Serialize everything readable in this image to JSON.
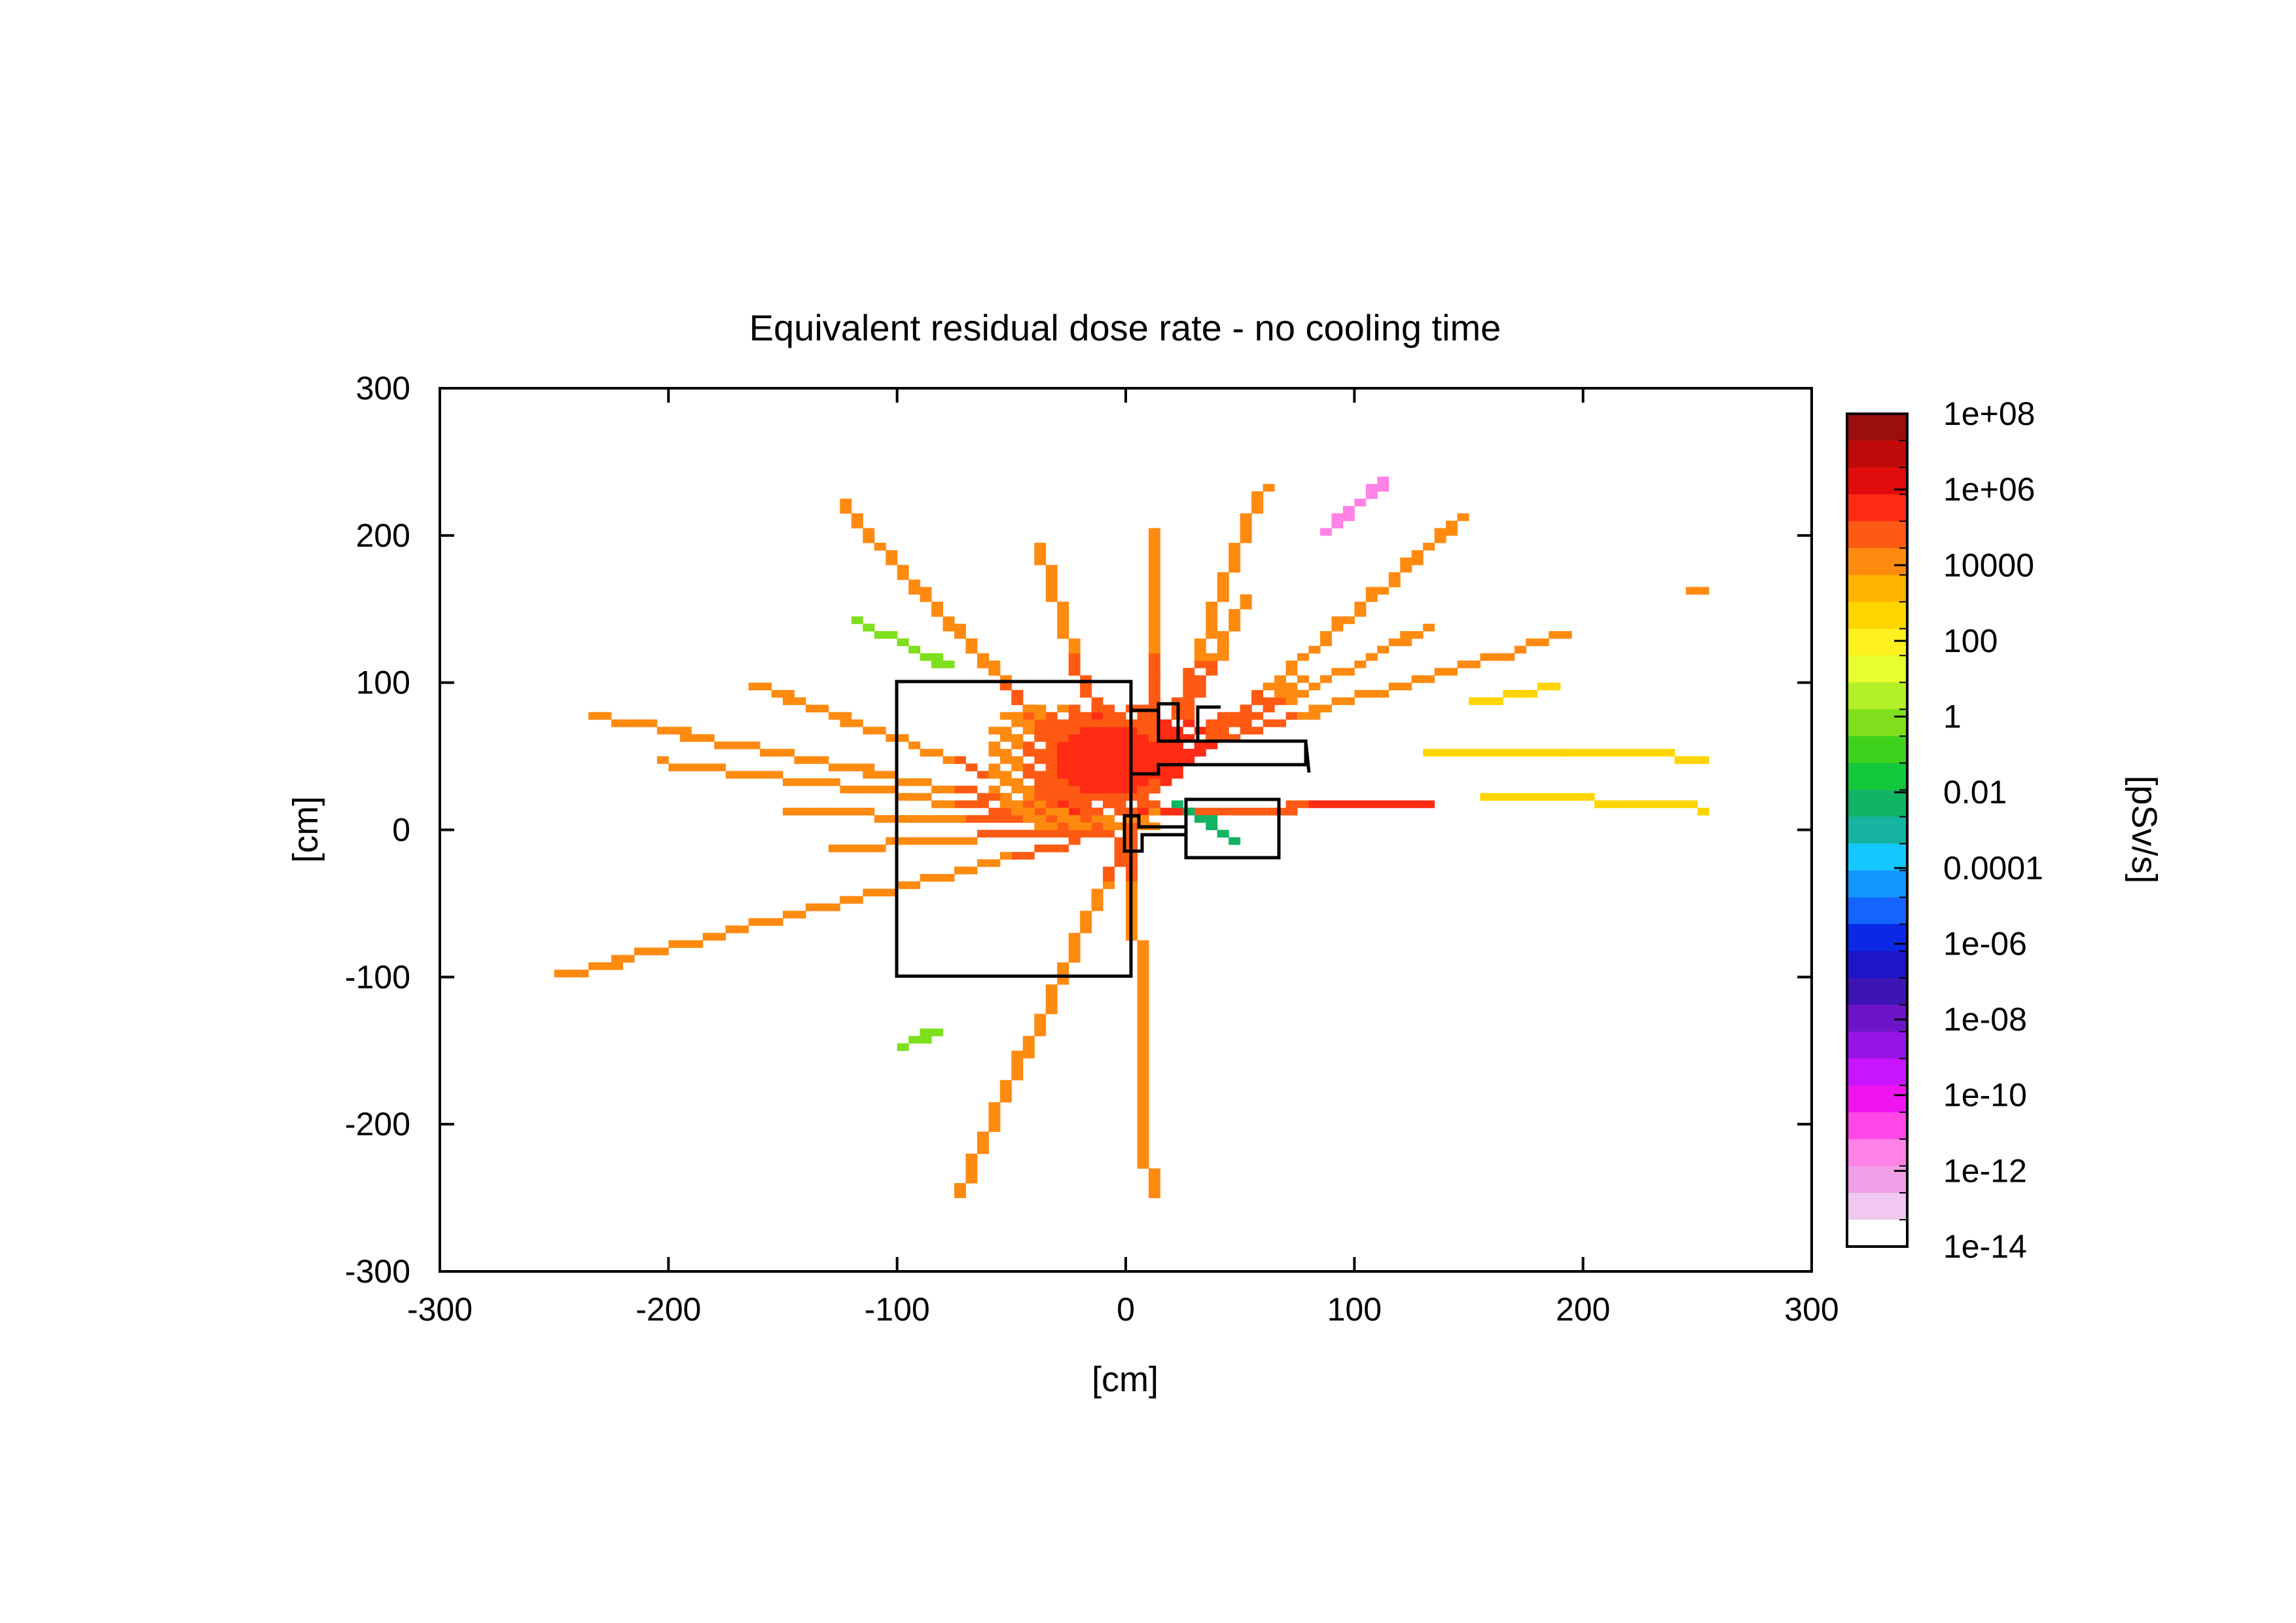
{
  "chart_data": {
    "type": "heatmap",
    "title": "Equivalent residual dose rate - no cooling time",
    "xlabel": "[cm]",
    "ylabel": "[cm]",
    "xlim": [
      -300,
      300
    ],
    "ylim": [
      -300,
      300
    ],
    "x_ticks": [
      "-300",
      "-200",
      "-100",
      "0",
      "100",
      "200",
      "300"
    ],
    "y_ticks": [
      "300",
      "200",
      "100",
      "0",
      "-100",
      "-200",
      "-300"
    ],
    "colorbar": {
      "label": "[pSv/s]",
      "scale": "log",
      "range": [
        1e-14,
        100000000.0
      ],
      "tick_labels": [
        "1e+08",
        "1e+06",
        "10000",
        "100",
        "1",
        "0.01",
        "0.0001",
        "1e-06",
        "1e-08",
        "1e-10",
        "1e-12",
        "1e-14"
      ],
      "colors": [
        "#9c0d0d",
        "#c00a0a",
        "#e00c0c",
        "#ff2b14",
        "#ff5a14",
        "#ff8a10",
        "#ffb400",
        "#ffd500",
        "#fff020",
        "#e8ff30",
        "#b4f028",
        "#7ee01c",
        "#3ed21c",
        "#14c83c",
        "#12b464",
        "#14b4a0",
        "#14c8ff",
        "#1496ff",
        "#1464ff",
        "#0a28e6",
        "#1e14c8",
        "#3c14b4",
        "#6e14c8",
        "#9614e6",
        "#c814ff",
        "#f014f0",
        "#ff46e6",
        "#ff82e6",
        "#f0a0e6",
        "#f0c8f0",
        "#ffffff"
      ]
    },
    "series": [
      {
        "x": [
          0,
          -250
        ],
        "y": [
          0,
          -102
        ],
        "value": 10000
      },
      {
        "x": [
          0,
          -75
        ],
        "y": [
          0,
          -248
        ],
        "value": 10000
      },
      {
        "x": [
          0,
          -128
        ],
        "y": [
          0,
          -15
        ],
        "value": 10000
      },
      {
        "x": [
          0,
          -150
        ],
        "y": [
          0,
          10
        ],
        "value": 10000
      },
      {
        "x": [
          0,
          -205
        ],
        "y": [
          0,
          43
        ],
        "value": 10000
      },
      {
        "x": [
          0,
          -235
        ],
        "y": [
          0,
          75
        ],
        "value": 10000
      },
      {
        "x": [
          0,
          -165
        ],
        "y": [
          0,
          96
        ],
        "value": 10000
      },
      {
        "x": [
          0,
          -70
        ],
        "y": [
          0,
          125
        ],
        "value": 10000
      },
      {
        "x": [
          0,
          -125
        ],
        "y": [
          0,
          218
        ],
        "value": 10000
      },
      {
        "x": [
          0,
          -40
        ],
        "y": [
          0,
          190
        ],
        "value": 10000
      },
      {
        "x": [
          5,
          12
        ],
        "y": [
          0,
          200
        ],
        "value": 10000
      },
      {
        "x": [
          0,
          50
        ],
        "y": [
          0,
          155
        ],
        "value": 10000
      },
      {
        "x": [
          0,
          58
        ],
        "y": [
          0,
          232
        ],
        "value": 10000
      },
      {
        "x": [
          10,
          145
        ],
        "y": [
          25,
          210
        ],
        "value": 10000
      },
      {
        "x": [
          10,
          130
        ],
        "y": [
          40,
          135
        ],
        "value": 10000
      },
      {
        "x": [
          10,
          190
        ],
        "y": [
          45,
          130
        ],
        "value": 10000
      },
      {
        "x": [
          10,
          75
        ],
        "y": [
          50,
          98
        ],
        "value": 10000
      },
      {
        "x": [
          130,
          250
        ],
        "y": [
          52,
          47
        ],
        "value": 1000
      },
      {
        "x": [
          155,
          250
        ],
        "y": [
          22,
          12
        ],
        "value": 1000
      },
      {
        "x": [
          150,
          185
        ],
        "y": [
          83,
          95
        ],
        "value": 1000
      },
      {
        "x": [
          10,
          130
        ],
        "y": [
          10,
          15
        ],
        "value": 1000000
      },
      {
        "x": [
          0,
          8
        ],
        "y": [
          0,
          -248
        ],
        "value": 10000
      },
      {
        "x": [
          245,
          252
        ],
        "y": [
          162,
          162
        ],
        "value": 10000
      },
      {
        "x": [
          85,
          112
        ],
        "y": [
          200,
          236
        ],
        "value": 1e-12
      },
      {
        "x": [
          -120,
          -80
        ],
        "y": [
          140,
          108
        ],
        "value": 1
      },
      {
        "x": [
          -100,
          -85
        ],
        "y": [
          -150,
          -140
        ],
        "value": 1
      },
      {
        "x": [
          20,
          45
        ],
        "y": [
          15,
          -10
        ],
        "value": 0.01
      }
    ]
  }
}
